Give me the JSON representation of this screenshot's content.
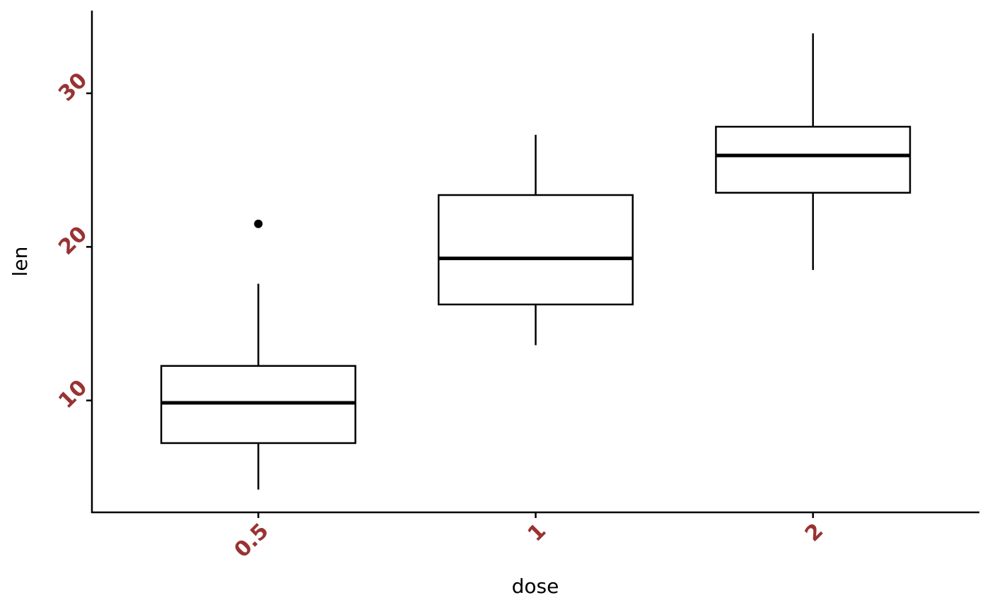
{
  "chart_data": {
    "type": "box",
    "x_label": "dose",
    "y_label": "len",
    "categories": [
      "0.5",
      "1",
      "2"
    ],
    "boxes": [
      {
        "min": 4.2,
        "q1": 7.225,
        "median": 9.85,
        "q3": 12.25,
        "max": 17.6,
        "outliers": [
          21.5
        ]
      },
      {
        "min": 13.6,
        "q1": 16.25,
        "median": 19.25,
        "q3": 23.375,
        "max": 27.3,
        "outliers": []
      },
      {
        "min": 18.5,
        "q1": 23.525,
        "median": 25.95,
        "q3": 27.825,
        "max": 33.9,
        "outliers": []
      }
    ],
    "ylim": [
      2.715,
      35.385
    ],
    "yticks": [
      10,
      20,
      30
    ],
    "box_color": "#000000",
    "box_fill": "#ffffff",
    "tick_label_color": "#993333",
    "grid": false
  }
}
